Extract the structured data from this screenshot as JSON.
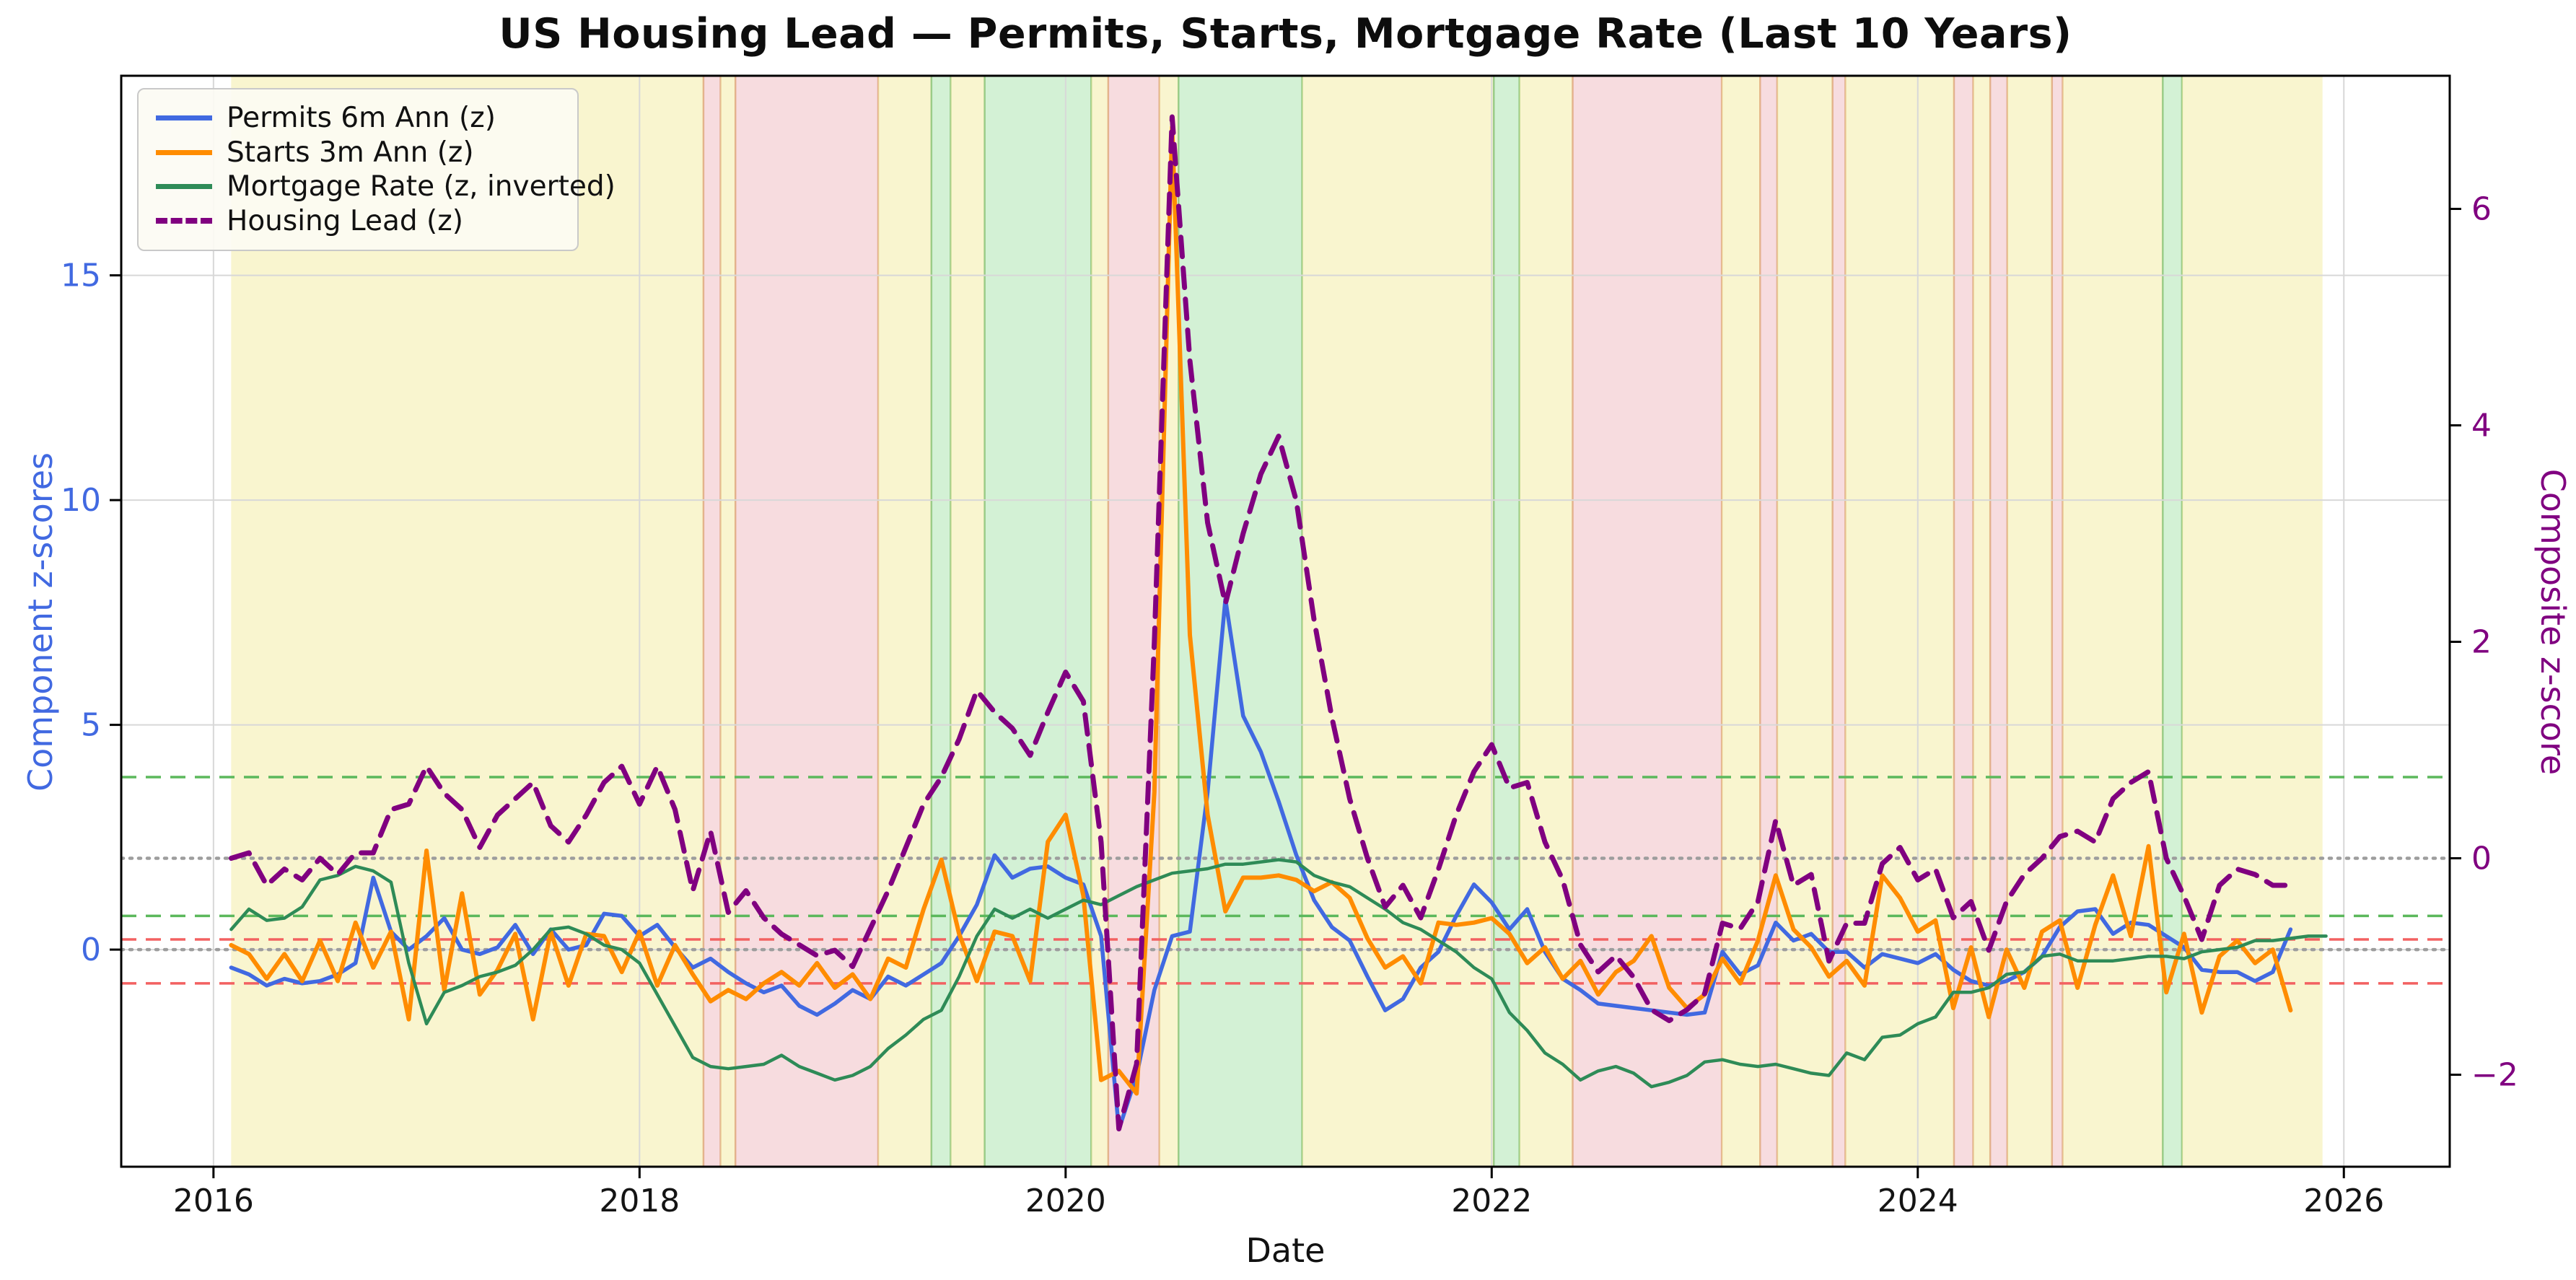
{
  "title": "US Housing Lead — Permits, Starts, Mortgage Rate (Last 10 Years)",
  "legend": {
    "items": [
      {
        "label": "Permits 6m Ann (z)"
      },
      {
        "label": "Starts 3m Ann (z)"
      },
      {
        "label": "Mortgage Rate (z, inverted)"
      },
      {
        "label": "Housing Lead (z)"
      }
    ]
  },
  "chart_data": {
    "type": "line",
    "title": "US Housing Lead — Permits, Starts, Mortgage Rate (Last 10 Years)",
    "xlabel": "Date",
    "ylabel_left": "Component z-scores",
    "ylabel_right": "Composite z-score",
    "x_start_year": 2016.0833,
    "x_step_years": 0.083333,
    "axes": {
      "x": {
        "range": [
          2015.567,
          2026.497
        ],
        "ticks": [
          {
            "v": 2016,
            "label": "2016"
          },
          {
            "v": 2018,
            "label": "2018"
          },
          {
            "v": 2020,
            "label": "2020"
          },
          {
            "v": 2022,
            "label": "2022"
          },
          {
            "v": 2024,
            "label": "2024"
          },
          {
            "v": 2026,
            "label": "2026"
          }
        ]
      },
      "y_left": {
        "range": [
          -4.83,
          19.44
        ],
        "ticks": [
          {
            "v": 0,
            "label": "0"
          },
          {
            "v": 5,
            "label": "5"
          },
          {
            "v": 10,
            "label": "10"
          },
          {
            "v": 15,
            "label": "15"
          }
        ],
        "color": "#4169e1"
      },
      "y_right": {
        "range": [
          -2.85,
          7.23
        ],
        "ticks": [
          {
            "v": -2,
            "label": "−2"
          },
          {
            "v": 0,
            "label": "0"
          },
          {
            "v": 2,
            "label": "2"
          },
          {
            "v": 4,
            "label": "4"
          },
          {
            "v": 6,
            "label": "6"
          }
        ],
        "color": "#800080"
      }
    },
    "grid": {
      "x_years": [
        2016,
        2018,
        2020,
        2022,
        2024,
        2026
      ],
      "color": "#d8d8d8"
    },
    "thresholds": [
      {
        "axis": "right",
        "value": 0.75,
        "color": "#5cb85c",
        "style": "dashed"
      },
      {
        "axis": "left",
        "value": 0.75,
        "color": "#5cb85c",
        "style": "dashed"
      },
      {
        "axis": "right",
        "value": -0.75,
        "color": "#f26161",
        "style": "dashed"
      },
      {
        "axis": "left",
        "value": -0.75,
        "color": "#f26161",
        "style": "dashed"
      },
      {
        "axis": "right",
        "value": 0,
        "color": "#9d9d9d",
        "style": "dotted"
      },
      {
        "axis": "left",
        "value": 0,
        "color": "#9d9d9d",
        "style": "dotted"
      }
    ],
    "bands": [
      {
        "from": 2016.083,
        "to": 2018.3,
        "color": "yellow"
      },
      {
        "from": 2018.3,
        "to": 2018.38,
        "color": "red"
      },
      {
        "from": 2018.38,
        "to": 2018.45,
        "color": "yellow"
      },
      {
        "from": 2018.45,
        "to": 2019.12,
        "color": "red"
      },
      {
        "from": 2019.12,
        "to": 2019.37,
        "color": "yellow"
      },
      {
        "from": 2019.37,
        "to": 2019.46,
        "color": "green"
      },
      {
        "from": 2019.46,
        "to": 2019.62,
        "color": "yellow"
      },
      {
        "from": 2019.62,
        "to": 2020.12,
        "color": "green"
      },
      {
        "from": 2020.12,
        "to": 2020.2,
        "color": "yellow"
      },
      {
        "from": 2020.2,
        "to": 2020.44,
        "color": "red"
      },
      {
        "from": 2020.44,
        "to": 2020.53,
        "color": "yellow"
      },
      {
        "from": 2020.53,
        "to": 2021.11,
        "color": "green"
      },
      {
        "from": 2021.11,
        "to": 2022.01,
        "color": "yellow"
      },
      {
        "from": 2022.01,
        "to": 2022.13,
        "color": "green"
      },
      {
        "from": 2022.13,
        "to": 2022.38,
        "color": "yellow"
      },
      {
        "from": 2022.38,
        "to": 2023.08,
        "color": "red"
      },
      {
        "from": 2023.08,
        "to": 2023.26,
        "color": "yellow"
      },
      {
        "from": 2023.26,
        "to": 2023.34,
        "color": "red"
      },
      {
        "from": 2023.34,
        "to": 2023.6,
        "color": "yellow"
      },
      {
        "from": 2023.6,
        "to": 2023.66,
        "color": "red"
      },
      {
        "from": 2023.66,
        "to": 2024.17,
        "color": "yellow"
      },
      {
        "from": 2024.17,
        "to": 2024.26,
        "color": "red"
      },
      {
        "from": 2024.26,
        "to": 2024.34,
        "color": "yellow"
      },
      {
        "from": 2024.34,
        "to": 2024.42,
        "color": "red"
      },
      {
        "from": 2024.42,
        "to": 2024.63,
        "color": "yellow"
      },
      {
        "from": 2024.63,
        "to": 2024.68,
        "color": "red"
      },
      {
        "from": 2024.68,
        "to": 2025.15,
        "color": "yellow"
      },
      {
        "from": 2025.15,
        "to": 2025.24,
        "color": "green"
      },
      {
        "from": 2025.24,
        "to": 2025.9,
        "color": "yellow"
      }
    ],
    "band_colors": {
      "yellow": {
        "fill": "rgba(240,230,140,0.42)",
        "edge": "rgba(214,170,110,0.0)"
      },
      "green": {
        "fill": "rgba(144,220,150,0.40)",
        "edge": "rgba(130,190,110,0.75)"
      },
      "red": {
        "fill": "rgba(228,140,150,0.30)",
        "edge": "rgba(216,150,100,0.65)"
      }
    },
    "series": [
      {
        "name": "Permits 6m Ann (z)",
        "axis": "left",
        "color": "#4169e1",
        "style": "solid",
        "width": 5.5,
        "values": [
          -0.4,
          -0.55,
          -0.8,
          -0.65,
          -0.75,
          -0.7,
          -0.55,
          -0.3,
          1.6,
          0.4,
          0.0,
          0.3,
          0.7,
          0.0,
          -0.1,
          0.05,
          0.55,
          -0.1,
          0.45,
          0.0,
          0.1,
          0.8,
          0.75,
          0.3,
          0.55,
          0.05,
          -0.4,
          -0.2,
          -0.5,
          -0.75,
          -0.95,
          -0.8,
          -1.25,
          -1.45,
          -1.2,
          -0.9,
          -1.1,
          -0.6,
          -0.8,
          -0.55,
          -0.3,
          0.3,
          1.0,
          2.1,
          1.6,
          1.8,
          1.85,
          1.6,
          1.45,
          0.3,
          -4.0,
          -2.8,
          -0.9,
          0.3,
          0.4,
          3.5,
          7.8,
          5.2,
          4.4,
          3.3,
          2.1,
          1.1,
          0.5,
          0.2,
          -0.6,
          -1.35,
          -1.1,
          -0.4,
          -0.05,
          0.75,
          1.45,
          1.05,
          0.45,
          0.9,
          -0.05,
          -0.65,
          -0.9,
          -1.2,
          -1.25,
          -1.3,
          -1.35,
          -1.4,
          -1.45,
          -1.4,
          -0.05,
          -0.55,
          -0.35,
          0.6,
          0.2,
          0.35,
          -0.05,
          -0.05,
          -0.4,
          -0.1,
          -0.2,
          -0.3,
          -0.1,
          -0.45,
          -0.7,
          -0.8,
          -0.7,
          -0.5,
          -0.15,
          0.5,
          0.85,
          0.9,
          0.35,
          0.6,
          0.55,
          0.3,
          0.05,
          -0.45,
          -0.5,
          -0.5,
          -0.7,
          -0.5,
          0.45,
          null,
          null
        ]
      },
      {
        "name": "Starts 3m Ann (z)",
        "axis": "left",
        "color": "#ff8c00",
        "style": "solid",
        "width": 6,
        "values": [
          0.1,
          -0.1,
          -0.65,
          -0.1,
          -0.7,
          0.2,
          -0.7,
          0.6,
          -0.4,
          0.4,
          -1.55,
          2.2,
          -0.9,
          1.25,
          -1.0,
          -0.45,
          0.35,
          -1.55,
          0.4,
          -0.8,
          0.35,
          0.3,
          -0.5,
          0.4,
          -0.8,
          0.1,
          -0.55,
          -1.15,
          -0.9,
          -1.1,
          -0.75,
          -0.5,
          -0.8,
          -0.3,
          -0.85,
          -0.55,
          -1.1,
          -0.2,
          -0.4,
          0.9,
          2.0,
          0.35,
          -0.7,
          0.4,
          0.3,
          -0.7,
          2.4,
          3.0,
          1.2,
          -2.9,
          -2.7,
          -3.2,
          3.5,
          18.3,
          7.0,
          3.0,
          0.85,
          1.6,
          1.6,
          1.65,
          1.55,
          1.3,
          1.5,
          1.15,
          0.25,
          -0.4,
          -0.15,
          -0.75,
          0.6,
          0.55,
          0.6,
          0.7,
          0.35,
          -0.3,
          0.05,
          -0.65,
          -0.25,
          -1.0,
          -0.5,
          -0.25,
          0.3,
          -0.85,
          -1.3,
          -1.0,
          -0.2,
          -0.75,
          0.2,
          1.65,
          0.45,
          0.05,
          -0.6,
          -0.25,
          -0.8,
          1.65,
          1.15,
          0.4,
          0.65,
          -1.3,
          0.05,
          -1.5,
          0.0,
          -0.85,
          0.4,
          0.65,
          -0.85,
          0.55,
          1.65,
          0.3,
          2.3,
          -0.95,
          0.35,
          -1.4,
          -0.15,
          0.2,
          -0.3,
          0.0,
          -1.35,
          null,
          null
        ]
      },
      {
        "name": "Mortgage Rate (z, inverted)",
        "axis": "left",
        "color": "#2e8b57",
        "style": "solid",
        "width": 4.5,
        "values": [
          0.45,
          0.9,
          0.65,
          0.7,
          0.95,
          1.55,
          1.65,
          1.85,
          1.75,
          1.5,
          -0.3,
          -1.65,
          -0.95,
          -0.8,
          -0.6,
          -0.5,
          -0.35,
          0.0,
          0.45,
          0.5,
          0.35,
          0.1,
          0.0,
          -0.3,
          -1.0,
          -1.7,
          -2.4,
          -2.6,
          -2.65,
          -2.6,
          -2.55,
          -2.35,
          -2.6,
          -2.75,
          -2.9,
          -2.8,
          -2.6,
          -2.2,
          -1.9,
          -1.55,
          -1.35,
          -0.6,
          0.3,
          0.9,
          0.7,
          0.9,
          0.7,
          0.9,
          1.1,
          1.0,
          1.2,
          1.4,
          1.55,
          1.7,
          1.75,
          1.8,
          1.9,
          1.9,
          1.95,
          2.0,
          1.95,
          1.65,
          1.5,
          1.4,
          1.15,
          0.9,
          0.6,
          0.45,
          0.2,
          -0.05,
          -0.4,
          -0.65,
          -1.4,
          -1.8,
          -2.3,
          -2.55,
          -2.9,
          -2.7,
          -2.6,
          -2.75,
          -3.05,
          -2.95,
          -2.8,
          -2.5,
          -2.45,
          -2.55,
          -2.6,
          -2.55,
          -2.65,
          -2.75,
          -2.8,
          -2.3,
          -2.45,
          -1.95,
          -1.9,
          -1.65,
          -1.5,
          -0.95,
          -0.95,
          -0.85,
          -0.55,
          -0.5,
          -0.15,
          -0.1,
          -0.25,
          -0.25,
          -0.25,
          -0.2,
          -0.15,
          -0.15,
          -0.2,
          -0.05,
          0.0,
          0.05,
          0.2,
          0.2,
          0.25,
          0.3,
          0.3
        ]
      },
      {
        "name": "Housing Lead (z)",
        "axis": "right",
        "color": "#800080",
        "style": "dashed",
        "width": 7,
        "values": [
          0.0,
          0.05,
          -0.25,
          -0.1,
          -0.2,
          0.0,
          -0.15,
          0.05,
          0.05,
          0.45,
          0.5,
          0.85,
          0.6,
          0.45,
          0.1,
          0.4,
          0.55,
          0.7,
          0.3,
          0.15,
          0.4,
          0.7,
          0.85,
          0.5,
          0.85,
          0.45,
          -0.3,
          0.25,
          -0.5,
          -0.3,
          -0.55,
          -0.7,
          -0.8,
          -0.9,
          -0.85,
          -1.0,
          -0.65,
          -0.3,
          0.1,
          0.5,
          0.75,
          1.1,
          1.55,
          1.35,
          1.2,
          0.95,
          1.35,
          1.72,
          1.45,
          0.15,
          -2.5,
          -1.9,
          2.0,
          6.85,
          4.6,
          3.1,
          2.35,
          3.0,
          3.55,
          3.9,
          3.3,
          2.2,
          1.3,
          0.55,
          0.0,
          -0.45,
          -0.25,
          -0.55,
          -0.1,
          0.4,
          0.8,
          1.05,
          0.65,
          0.7,
          0.15,
          -0.2,
          -0.8,
          -1.05,
          -0.9,
          -1.1,
          -1.4,
          -1.5,
          -1.4,
          -1.25,
          -0.6,
          -0.65,
          -0.4,
          0.35,
          -0.25,
          -0.15,
          -0.95,
          -0.6,
          -0.6,
          -0.05,
          0.1,
          -0.2,
          -0.1,
          -0.55,
          -0.4,
          -0.85,
          -0.4,
          -0.15,
          0.0,
          0.2,
          0.25,
          0.15,
          0.55,
          0.7,
          0.8,
          0.0,
          -0.35,
          -0.75,
          -0.25,
          -0.1,
          -0.15,
          -0.25,
          -0.25,
          null,
          null
        ]
      }
    ]
  }
}
